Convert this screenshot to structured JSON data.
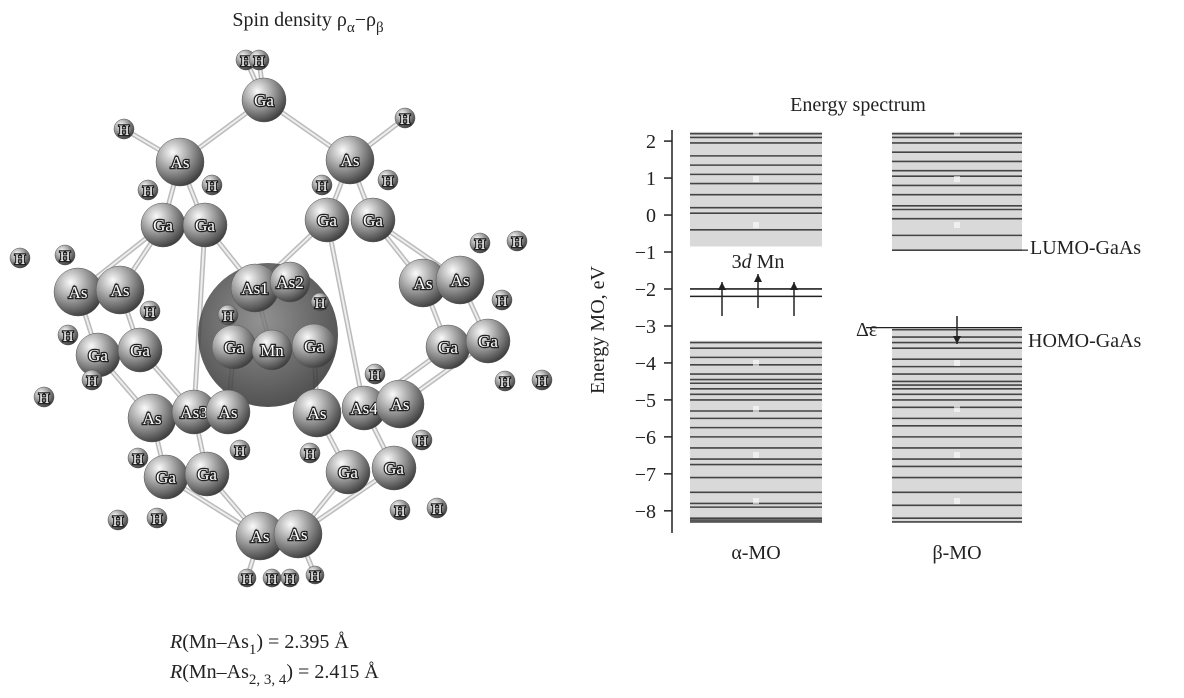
{
  "molecule": {
    "title": [
      "Spin density ρ",
      "α",
      "−ρ",
      "β"
    ],
    "atoms": [
      "H",
      "H",
      "Ga",
      "H",
      "As",
      "H",
      "As",
      "H",
      "H",
      "H",
      "H",
      "Ga",
      "Ga",
      "Ga",
      "Ga",
      "H",
      "H",
      "H",
      "H",
      "As",
      "As",
      "As1",
      "As2",
      "As",
      "As",
      "H",
      "H",
      "H",
      "H",
      "H",
      "Ga",
      "Ga",
      "Ga",
      "Mn",
      "Ga",
      "Ga",
      "Ga",
      "H",
      "H",
      "H",
      "H",
      "H",
      "As",
      "As3",
      "As",
      "As",
      "As4",
      "As",
      "H",
      "H",
      "H",
      "H",
      "Ga",
      "Ga",
      "Ga",
      "Ga",
      "H",
      "H",
      "H",
      "H",
      "As",
      "As",
      "H",
      "H",
      "H",
      "H"
    ],
    "bonds": [
      {
        "parts": [
          "R",
          "(Mn–As",
          "1",
          ") = 2.395 Å"
        ]
      },
      {
        "parts": [
          "R",
          "(Mn–As",
          "2, 3, 4",
          ") = 2.415 Å"
        ]
      }
    ]
  },
  "chart_data": {
    "type": "levels",
    "title": "Energy spectrum",
    "y_label": "Energy MO, eV",
    "ylim": [
      -8.6,
      2.3
    ],
    "yticks": [
      2,
      1,
      0,
      {
        "value": -1,
        "label": "−1"
      },
      {
        "value": -2,
        "label": "−2"
      },
      {
        "value": -3,
        "label": "−3"
      },
      {
        "value": -4,
        "label": "−4"
      },
      {
        "value": -5,
        "label": "−5"
      },
      {
        "value": -6,
        "label": "−6"
      },
      {
        "value": -7,
        "label": "−7"
      },
      {
        "value": -8,
        "label": "−8"
      }
    ],
    "series": [
      {
        "name": "α-MO",
        "bands": [
          [
            -8.3,
            -3.4
          ],
          [
            -0.85,
            2.25
          ]
        ],
        "levels": [
          -8.3,
          -8.25,
          -8.2,
          -7.9,
          -7.8,
          -7.5,
          -7.1,
          -6.75,
          -6.6,
          -6.3,
          -6.0,
          -5.75,
          -5.5,
          -5.3,
          -5.0,
          -4.85,
          -4.7,
          -4.55,
          -4.45,
          -4.3,
          -4.05,
          -3.85,
          -3.6,
          -3.45,
          -0.4,
          0.05,
          0.2,
          0.55,
          0.85,
          1.1,
          1.35,
          1.6,
          1.95,
          2.1,
          2.2
        ],
        "mn_levels": [
          -2.0,
          -2.2
        ]
      },
      {
        "name": "β-MO",
        "bands": [
          [
            -8.3,
            -3.1
          ],
          [
            -0.95,
            2.25
          ]
        ],
        "levels": [
          -8.3,
          -8.2,
          -7.85,
          -7.5,
          -7.1,
          -6.8,
          -6.6,
          -6.3,
          -6.0,
          -5.7,
          -5.5,
          -5.2,
          -5.0,
          -4.85,
          -4.7,
          -4.6,
          -4.5,
          -4.3,
          -4.1,
          -3.9,
          -3.6,
          -3.45,
          -3.3,
          -3.1,
          -0.95,
          -0.55,
          -0.1,
          0.15,
          0.25,
          0.55,
          0.8,
          1.05,
          1.2,
          1.45,
          1.7,
          1.95,
          2.1,
          2.2
        ]
      }
    ],
    "annotations": {
      "mn": [
        "3",
        "d",
        " Mn"
      ],
      "lumo": "LUMO-GaAs",
      "homo": "HOMO-GaAs",
      "gap": "Δε"
    }
  }
}
